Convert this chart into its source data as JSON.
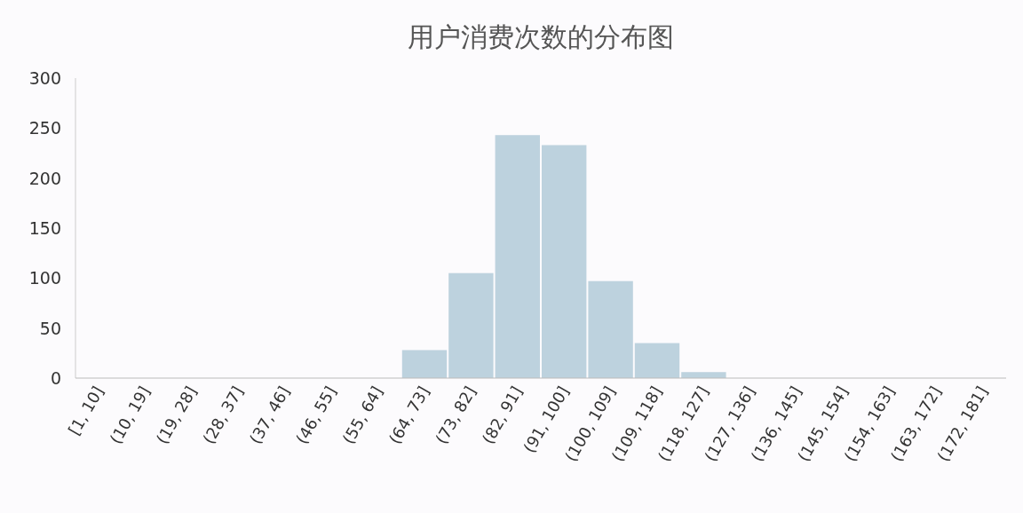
{
  "chart_data": {
    "type": "bar",
    "title": "用户消费次数的分布图",
    "categories": [
      "[1, 10]",
      "(10, 19]",
      "(19, 28]",
      "(28, 37]",
      "(37, 46]",
      "(46, 55]",
      "(55, 64]",
      "(64, 73]",
      "(73, 82]",
      "(82, 91]",
      "(91, 100]",
      "(100, 109]",
      "(109, 118]",
      "(118, 127]",
      "(127, 136]",
      "(136, 145]",
      "(145, 154]",
      "(154, 163]",
      "(163, 172]",
      "(172, 181]"
    ],
    "values": [
      0,
      0,
      0,
      0,
      0,
      0,
      0,
      28,
      105,
      243,
      233,
      97,
      35,
      6,
      0,
      0,
      0,
      0,
      0,
      0
    ],
    "color": "#bdd2de",
    "ylim": [
      0,
      300
    ],
    "yticks": [
      0,
      50,
      100,
      150,
      200,
      250,
      300
    ],
    "grid": false
  }
}
